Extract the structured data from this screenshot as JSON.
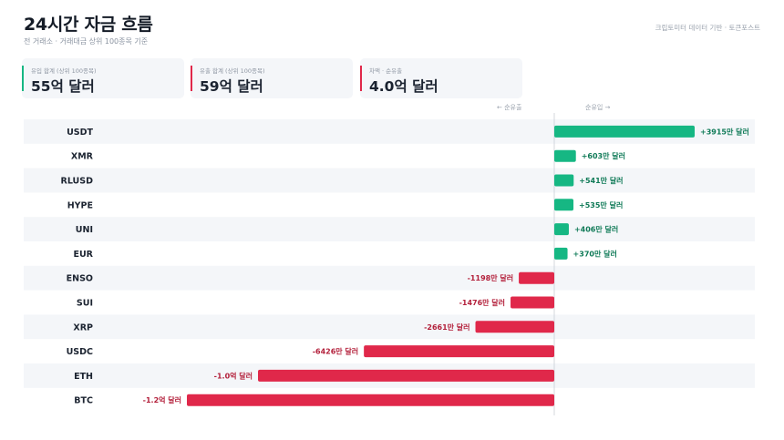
{
  "header": {
    "title": "24시간 자금 흐름",
    "subtitle": "전 거래소 · 거래대금 상위 100종목 기준",
    "source": "크립토미터 데이터 기반 · 토큰포스트"
  },
  "cards": [
    {
      "label": "유입 합계 (상위 100종목)",
      "value": "55억 달러",
      "accent": "#16b783"
    },
    {
      "label": "유출 합계 (상위 100종목)",
      "value": "59억 달러",
      "accent": "#e0284a"
    },
    {
      "label": "차액 · 순유출",
      "value": "4.0억 달러",
      "accent": "#e0284a"
    }
  ],
  "direction": {
    "outflow": "← 순유출",
    "inflow": "순유입 →"
  },
  "colors": {
    "inflow": "#16b783",
    "outflow": "#e0284a",
    "inflow_label": "#0f7a57",
    "outflow_label": "#b3203b",
    "row_alt": "#f4f6f9"
  },
  "chart_data": {
    "type": "bar",
    "orientation": "horizontal",
    "unit": "만 달러",
    "categories": [
      "USDT",
      "XMR",
      "RLUSD",
      "HYPE",
      "UNI",
      "EUR",
      "ENSO",
      "SUI",
      "XRP",
      "USDC",
      "ETH",
      "BTC"
    ],
    "values": [
      3915,
      603,
      541,
      535,
      406,
      370,
      -1198,
      -1476,
      -2661,
      -6426,
      -10000,
      -12400
    ],
    "labels": [
      "+3915만 달러",
      "+603만 달러",
      "+541만 달러",
      "+535만 달러",
      "+406만 달러",
      "+370만 달러",
      "-1198만 달러",
      "-1476만 달러",
      "-2661만 달러",
      "-6426만 달러",
      "-1.0억 달러",
      "-1.2억 달러"
    ]
  }
}
